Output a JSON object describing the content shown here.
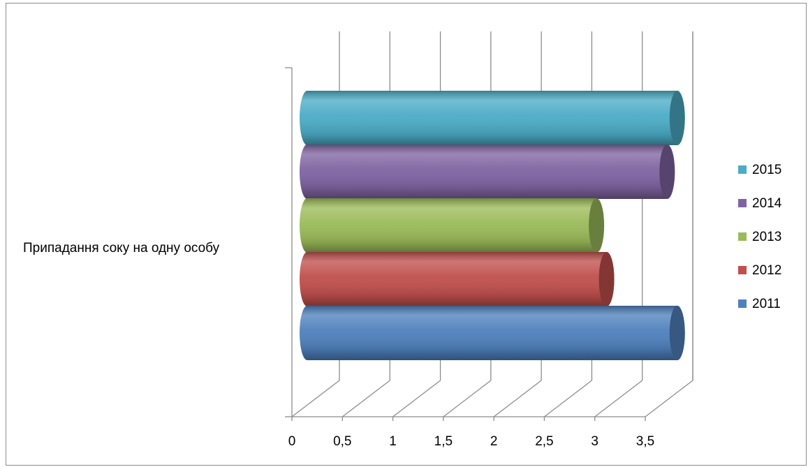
{
  "chart_data": {
    "type": "bar",
    "orientation": "horizontal",
    "style": "3d-cylinder",
    "title": "",
    "categories": [
      "Припадання соку на одну особу"
    ],
    "series": [
      {
        "name": "2011",
        "values": [
          3.6
        ],
        "color": "#4f81bd"
      },
      {
        "name": "2012",
        "values": [
          2.9
        ],
        "color": "#c0504d"
      },
      {
        "name": "2013",
        "values": [
          2.8
        ],
        "color": "#9bbb59"
      },
      {
        "name": "2014",
        "values": [
          3.5
        ],
        "color": "#8064a2"
      },
      {
        "name": "2015",
        "values": [
          3.6
        ],
        "color": "#4bacc6"
      }
    ],
    "xlim": [
      0,
      3.5
    ],
    "x_ticks": [
      "0",
      "0,5",
      "1",
      "1,5",
      "2",
      "2,5",
      "3",
      "3,5"
    ],
    "grid": true,
    "legend": {
      "position": "right",
      "order": [
        "2015",
        "2014",
        "2013",
        "2012",
        "2011"
      ]
    }
  }
}
